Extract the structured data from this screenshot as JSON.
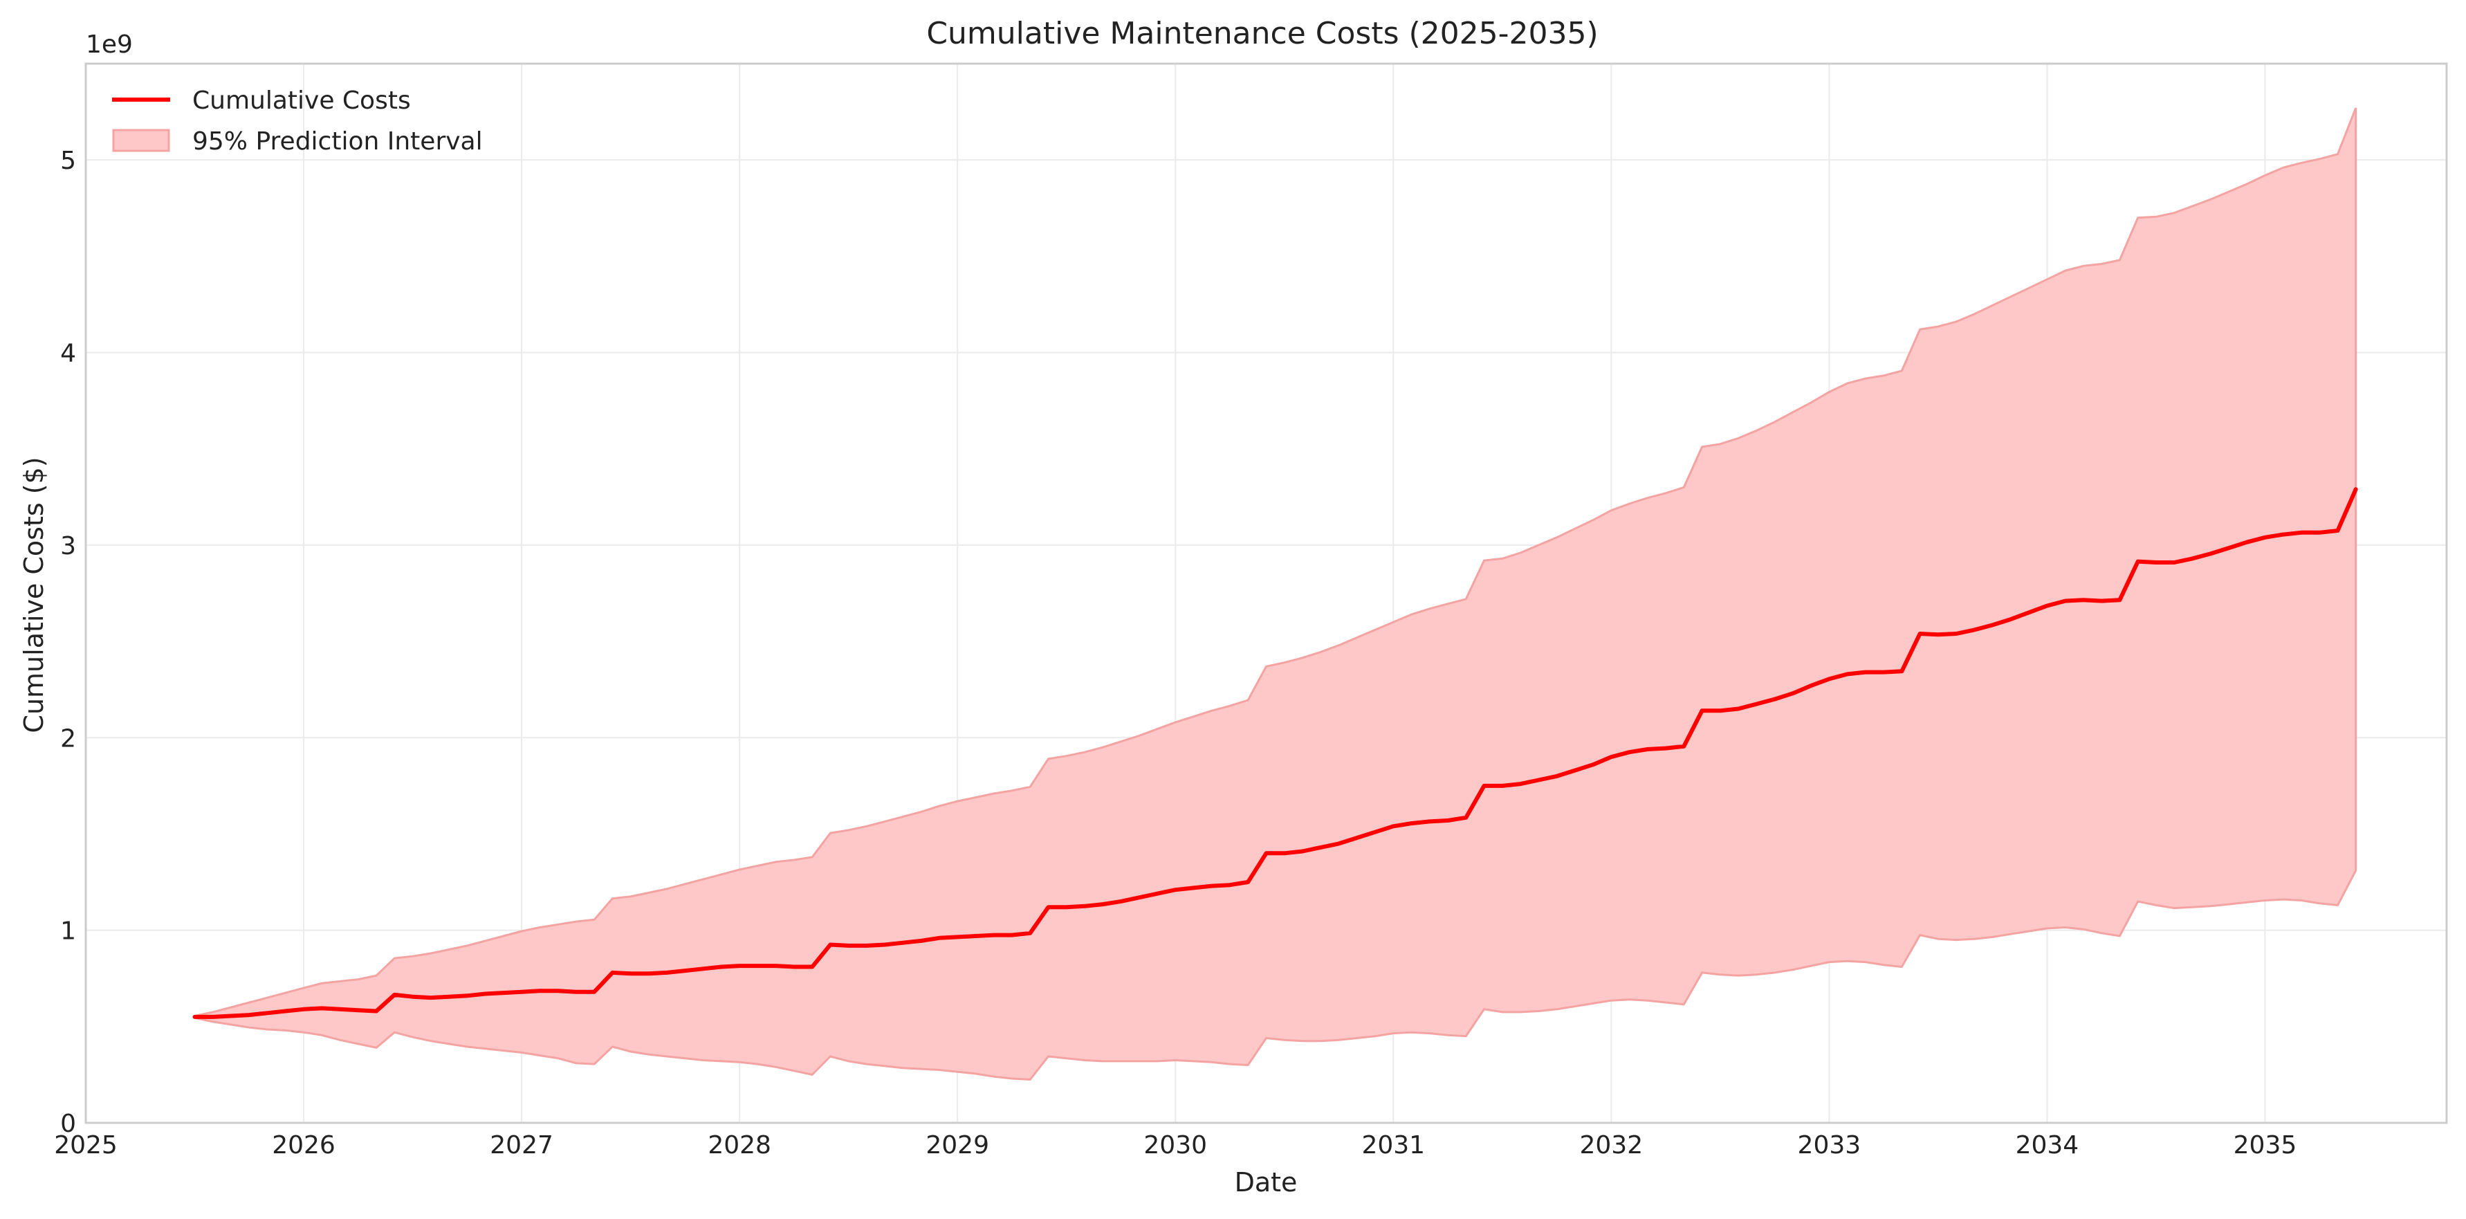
{
  "chart_data": {
    "type": "line",
    "title": "Cumulative Maintenance Costs (2025-2035)",
    "xlabel": "Date",
    "ylabel": "Cumulative Costs ($)",
    "y_offset_text": "1e9",
    "xlim": [
      "2025-01-01",
      "2035-11-30"
    ],
    "ylim": [
      0,
      5.5
    ],
    "xticks": [
      "2025",
      "2026",
      "2027",
      "2028",
      "2029",
      "2030",
      "2031",
      "2032",
      "2033",
      "2034",
      "2035"
    ],
    "yticks": [
      "0",
      "1",
      "2",
      "3",
      "4",
      "5"
    ],
    "grid": true,
    "legend": {
      "position": "top-left",
      "entries": [
        "Cumulative Costs",
        "95% Prediction Interval"
      ]
    },
    "colors": {
      "line": "#ff0000",
      "band": "#ffc8c8",
      "band_edge": "#f4a3a3"
    },
    "x": [
      "2025-07",
      "2025-08",
      "2025-09",
      "2025-10",
      "2025-11",
      "2025-12",
      "2026-01",
      "2026-02",
      "2026-03",
      "2026-04",
      "2026-05",
      "2026-06",
      "2026-07",
      "2026-08",
      "2026-09",
      "2026-10",
      "2026-11",
      "2026-12",
      "2027-01",
      "2027-02",
      "2027-03",
      "2027-04",
      "2027-05",
      "2027-06",
      "2027-07",
      "2027-08",
      "2027-09",
      "2027-10",
      "2027-11",
      "2027-12",
      "2028-01",
      "2028-02",
      "2028-03",
      "2028-04",
      "2028-05",
      "2028-06",
      "2028-07",
      "2028-08",
      "2028-09",
      "2028-10",
      "2028-11",
      "2028-12",
      "2029-01",
      "2029-02",
      "2029-03",
      "2029-04",
      "2029-05",
      "2029-06",
      "2029-07",
      "2029-08",
      "2029-09",
      "2029-10",
      "2029-11",
      "2029-12",
      "2030-01",
      "2030-02",
      "2030-03",
      "2030-04",
      "2030-05",
      "2030-06",
      "2030-07",
      "2030-08",
      "2030-09",
      "2030-10",
      "2030-11",
      "2030-12",
      "2031-01",
      "2031-02",
      "2031-03",
      "2031-04",
      "2031-05",
      "2031-06",
      "2031-07",
      "2031-08",
      "2031-09",
      "2031-10",
      "2031-11",
      "2031-12",
      "2032-01",
      "2032-02",
      "2032-03",
      "2032-04",
      "2032-05",
      "2032-06",
      "2032-07",
      "2032-08",
      "2032-09",
      "2032-10",
      "2032-11",
      "2032-12",
      "2033-01",
      "2033-02",
      "2033-03",
      "2033-04",
      "2033-05",
      "2033-06",
      "2033-07",
      "2033-08",
      "2033-09",
      "2033-10",
      "2033-11",
      "2033-12",
      "2034-01",
      "2034-02",
      "2034-03",
      "2034-04",
      "2034-05",
      "2034-06",
      "2034-07",
      "2034-08",
      "2034-09",
      "2034-10",
      "2034-11",
      "2034-12",
      "2035-01",
      "2035-02",
      "2035-03",
      "2035-04",
      "2035-05",
      "2035-06"
    ],
    "series": [
      {
        "name": "Cumulative Costs",
        "values": [
          0.55,
          0.55,
          0.555,
          0.56,
          0.57,
          0.58,
          0.59,
          0.595,
          0.59,
          0.585,
          0.58,
          0.665,
          0.655,
          0.65,
          0.655,
          0.66,
          0.67,
          0.675,
          0.68,
          0.685,
          0.685,
          0.68,
          0.68,
          0.78,
          0.775,
          0.775,
          0.78,
          0.79,
          0.8,
          0.81,
          0.815,
          0.815,
          0.815,
          0.81,
          0.81,
          0.925,
          0.92,
          0.92,
          0.925,
          0.935,
          0.945,
          0.96,
          0.965,
          0.97,
          0.975,
          0.975,
          0.985,
          1.12,
          1.12,
          1.125,
          1.135,
          1.15,
          1.17,
          1.19,
          1.21,
          1.22,
          1.23,
          1.235,
          1.25,
          1.4,
          1.4,
          1.41,
          1.43,
          1.45,
          1.48,
          1.51,
          1.54,
          1.555,
          1.565,
          1.57,
          1.585,
          1.75,
          1.75,
          1.76,
          1.78,
          1.8,
          1.83,
          1.86,
          1.9,
          1.925,
          1.94,
          1.945,
          1.955,
          2.14,
          2.14,
          2.15,
          2.175,
          2.2,
          2.23,
          2.27,
          2.305,
          2.33,
          2.34,
          2.34,
          2.345,
          2.54,
          2.535,
          2.54,
          2.56,
          2.585,
          2.615,
          2.65,
          2.685,
          2.71,
          2.715,
          2.71,
          2.715,
          2.915,
          2.91,
          2.91,
          2.93,
          2.955,
          2.985,
          3.015,
          3.04,
          3.055,
          3.065,
          3.065,
          3.075,
          3.29
        ]
      },
      {
        "name": "95% Prediction Interval",
        "lower": [
          0.545,
          0.525,
          0.51,
          0.495,
          0.485,
          0.48,
          0.47,
          0.455,
          0.43,
          0.41,
          0.39,
          0.47,
          0.445,
          0.425,
          0.41,
          0.395,
          0.385,
          0.375,
          0.365,
          0.35,
          0.335,
          0.31,
          0.305,
          0.395,
          0.37,
          0.355,
          0.345,
          0.335,
          0.325,
          0.32,
          0.315,
          0.305,
          0.29,
          0.27,
          0.25,
          0.345,
          0.32,
          0.305,
          0.295,
          0.285,
          0.28,
          0.275,
          0.265,
          0.255,
          0.24,
          0.23,
          0.225,
          0.345,
          0.335,
          0.325,
          0.32,
          0.32,
          0.32,
          0.32,
          0.325,
          0.32,
          0.315,
          0.305,
          0.3,
          0.44,
          0.43,
          0.425,
          0.425,
          0.43,
          0.44,
          0.45,
          0.465,
          0.47,
          0.465,
          0.455,
          0.45,
          0.59,
          0.575,
          0.575,
          0.58,
          0.59,
          0.605,
          0.62,
          0.635,
          0.64,
          0.635,
          0.625,
          0.615,
          0.78,
          0.77,
          0.765,
          0.77,
          0.78,
          0.795,
          0.815,
          0.835,
          0.84,
          0.835,
          0.82,
          0.81,
          0.975,
          0.955,
          0.95,
          0.955,
          0.965,
          0.98,
          0.995,
          1.01,
          1.015,
          1.005,
          0.985,
          0.97,
          1.15,
          1.13,
          1.115,
          1.12,
          1.125,
          1.135,
          1.145,
          1.155,
          1.16,
          1.155,
          1.14,
          1.13,
          1.31
        ],
        "upper": [
          0.555,
          0.575,
          0.6,
          0.625,
          0.65,
          0.675,
          0.7,
          0.725,
          0.735,
          0.745,
          0.765,
          0.855,
          0.865,
          0.88,
          0.9,
          0.92,
          0.945,
          0.97,
          0.995,
          1.015,
          1.03,
          1.045,
          1.055,
          1.165,
          1.175,
          1.195,
          1.215,
          1.24,
          1.265,
          1.29,
          1.315,
          1.335,
          1.355,
          1.365,
          1.38,
          1.505,
          1.52,
          1.54,
          1.565,
          1.59,
          1.615,
          1.645,
          1.67,
          1.69,
          1.71,
          1.725,
          1.745,
          1.89,
          1.905,
          1.925,
          1.95,
          1.98,
          2.01,
          2.045,
          2.08,
          2.11,
          2.14,
          2.165,
          2.195,
          2.37,
          2.39,
          2.415,
          2.445,
          2.48,
          2.52,
          2.56,
          2.6,
          2.64,
          2.67,
          2.695,
          2.72,
          2.92,
          2.93,
          2.96,
          3.0,
          3.04,
          3.085,
          3.13,
          3.18,
          3.215,
          3.245,
          3.27,
          3.3,
          3.51,
          3.525,
          3.555,
          3.595,
          3.64,
          3.69,
          3.74,
          3.795,
          3.84,
          3.865,
          3.88,
          3.905,
          4.12,
          4.135,
          4.16,
          4.2,
          4.245,
          4.29,
          4.335,
          4.38,
          4.425,
          4.45,
          4.46,
          4.48,
          4.7,
          4.705,
          4.725,
          4.76,
          4.795,
          4.835,
          4.875,
          4.92,
          4.96,
          4.985,
          5.005,
          5.03,
          5.27
        ]
      }
    ]
  }
}
